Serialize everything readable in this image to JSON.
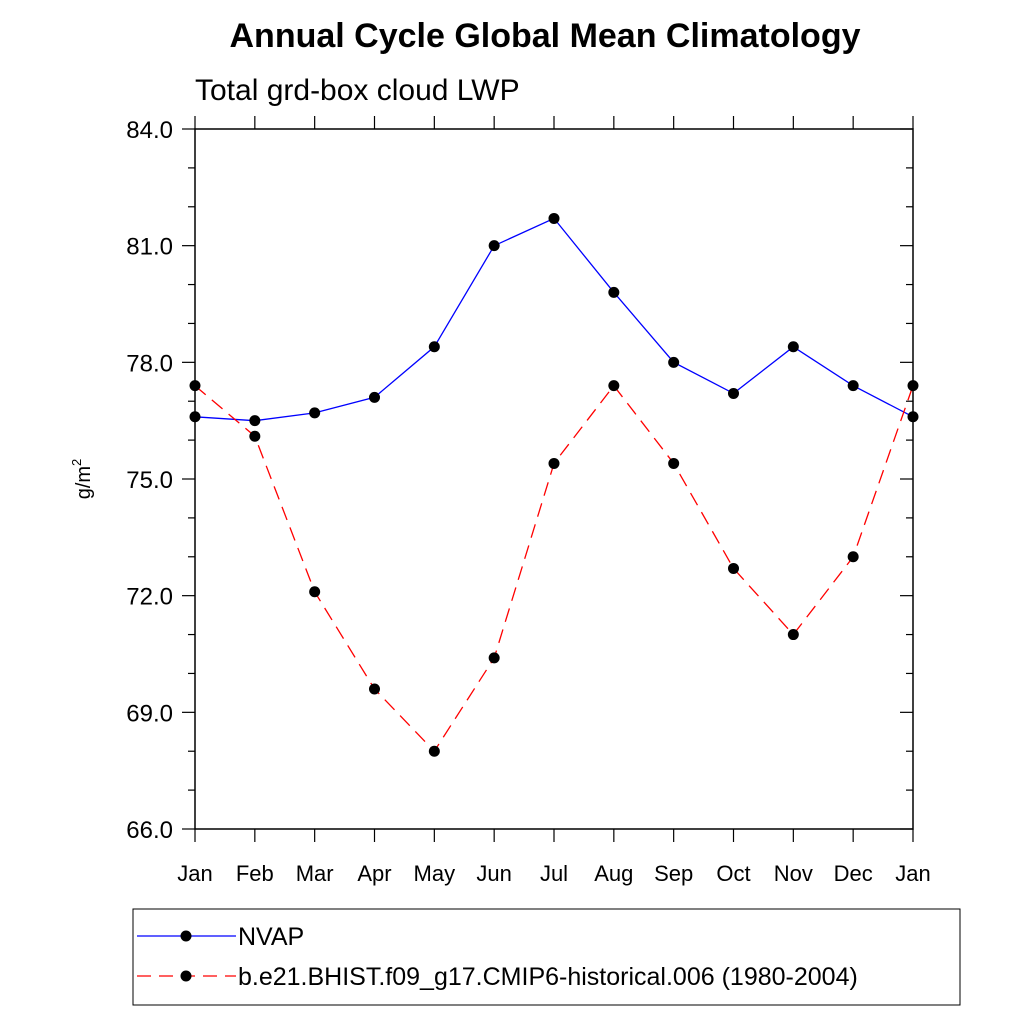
{
  "chart_data": {
    "type": "line",
    "title": "Annual Cycle Global Mean Climatology",
    "subtitle": "Total grd-box cloud LWP",
    "ylabel": "g/m",
    "ylabel_superscript": "2",
    "xlabel": "",
    "categories": [
      "Jan",
      "Feb",
      "Mar",
      "Apr",
      "May",
      "Jun",
      "Jul",
      "Aug",
      "Sep",
      "Oct",
      "Nov",
      "Dec",
      "Jan"
    ],
    "ylim": [
      66.0,
      84.0
    ],
    "yticks": [
      "66.0",
      "69.0",
      "72.0",
      "75.0",
      "78.0",
      "81.0",
      "84.0"
    ],
    "grid": false,
    "legend_position": "bottom",
    "series": [
      {
        "name": "NVAP",
        "color": "#0000ff",
        "line_style": "solid",
        "marker": "filled-circle",
        "values": [
          76.6,
          76.5,
          76.7,
          77.1,
          78.4,
          81.0,
          81.7,
          79.8,
          78.0,
          77.2,
          78.4,
          77.4,
          76.6
        ]
      },
      {
        "name": "b.e21.BHIST.f09_g17.CMIP6-historical.006 (1980-2004)",
        "color": "#ff0000",
        "line_style": "dashed",
        "marker": "filled-circle",
        "values": [
          77.4,
          76.1,
          72.1,
          69.6,
          68.0,
          70.4,
          75.4,
          77.4,
          75.4,
          72.7,
          71.0,
          73.0,
          77.4
        ]
      }
    ]
  }
}
